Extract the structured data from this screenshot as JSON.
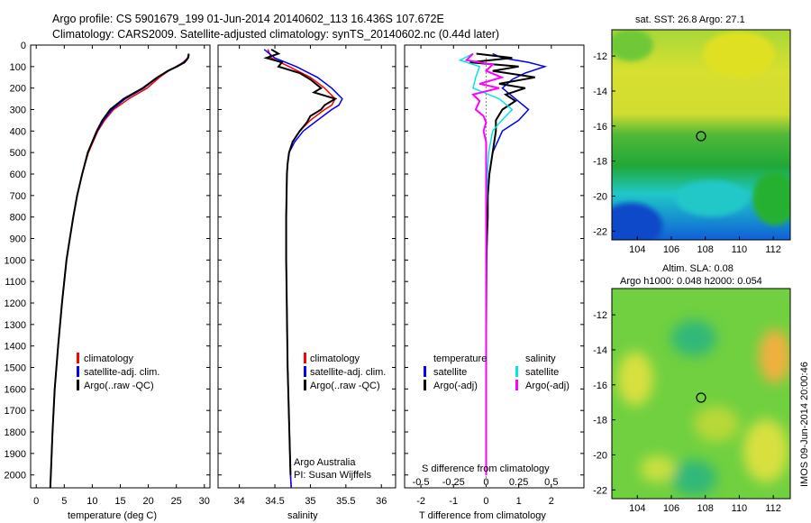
{
  "header": {
    "line1": "Argo profile: CS 5901679_199 01-Jun-2014 20140602_113 16.436S 107.672E",
    "line2": "Climatology: CARS2009. Satellite-adjusted climatology: synTS_20140602.nc (0.44d later)"
  },
  "colors": {
    "climatology": "#ff0000",
    "satellite": "#0000ff",
    "argo": "#000000",
    "sal_satellite": "#00e5e5",
    "sal_argo": "#ff00ff"
  },
  "depth_axis": {
    "ticks": [
      0,
      100,
      200,
      300,
      400,
      500,
      600,
      700,
      800,
      900,
      1000,
      1100,
      1200,
      1300,
      1400,
      1500,
      1600,
      1700,
      1800,
      1900,
      2000
    ],
    "labels": [
      "0",
      "100",
      "200",
      "300",
      "400",
      "500",
      "600",
      "700",
      "800",
      "900",
      "1000",
      "1100",
      "1200",
      "1300",
      "1400",
      "1500",
      "1600",
      "1700",
      "1800",
      "1900",
      "2000"
    ]
  },
  "legend_profile": [
    "climatology",
    "satellite-adj. clim.",
    "Argo(..raw -QC)"
  ],
  "legend_diff": {
    "temperature_head": "temperature",
    "salinity_head": "salinity",
    "t_sat": "satellite",
    "t_argo": "Argo(-adj)",
    "s_sat": "satellite",
    "s_argo": "Argo(-adj)"
  },
  "credits": {
    "line1": "Argo Australia",
    "line2": "PI: Susan Wijffels"
  },
  "timestamp": "IMOS 09-Jun-2014 20:00:46",
  "chart_data": [
    {
      "type": "line",
      "name": "temperature",
      "xlabel": "temperature (deg C)",
      "ylabel": "depth",
      "xlim": [
        -1,
        31
      ],
      "ylim": [
        2060,
        0
      ],
      "xticks": [
        0,
        5,
        10,
        15,
        20,
        25,
        30
      ],
      "series": [
        {
          "name": "climatology",
          "depth": [
            45,
            60,
            80,
            100,
            120,
            150,
            200,
            250,
            300,
            350,
            400,
            500,
            600,
            700,
            800,
            900,
            1000,
            1200,
            1400,
            1600,
            1800,
            2000,
            2060
          ],
          "values": [
            27.2,
            27.0,
            26.2,
            25.0,
            23.6,
            22.0,
            19.8,
            16.5,
            13.8,
            12.2,
            11.0,
            9.3,
            8.2,
            7.3,
            6.6,
            6.0,
            5.4,
            4.6,
            3.9,
            3.3,
            2.9,
            2.6,
            2.5
          ]
        },
        {
          "name": "satellite-adj. clim.",
          "depth": [
            45,
            60,
            80,
            100,
            120,
            150,
            200,
            250,
            300,
            350,
            400,
            500,
            600,
            700,
            800,
            900,
            1000,
            1200,
            1400,
            1600,
            1800,
            2000,
            2060
          ],
          "values": [
            27.3,
            27.1,
            26.3,
            25.0,
            23.4,
            21.7,
            19.2,
            15.9,
            13.5,
            12.0,
            10.9,
            9.2,
            8.2,
            7.3,
            6.6,
            6.0,
            5.4,
            4.6,
            3.9,
            3.3,
            2.9,
            2.6,
            2.5
          ]
        },
        {
          "name": "Argo(..raw -QC)",
          "depth": [
            40,
            60,
            80,
            100,
            120,
            150,
            200,
            250,
            300,
            350,
            400,
            500,
            600,
            700,
            800,
            900,
            1000,
            1200,
            1400,
            1600,
            1800,
            2000,
            2060
          ],
          "values": [
            27.2,
            27.1,
            26.5,
            25.1,
            23.5,
            21.6,
            19.0,
            15.6,
            13.2,
            11.8,
            10.8,
            9.2,
            8.2,
            7.3,
            6.6,
            6.0,
            5.4,
            4.6,
            3.9,
            3.3,
            2.9,
            2.6,
            2.5
          ]
        }
      ]
    },
    {
      "type": "line",
      "name": "salinity",
      "xlabel": "salinity",
      "xlim": [
        33.7,
        36.2
      ],
      "ylim": [
        2060,
        0
      ],
      "xticks": [
        34,
        34.5,
        35,
        35.5,
        36
      ],
      "xticklabels": [
        "34",
        "34.5",
        "35",
        "35.5",
        "36"
      ],
      "series": [
        {
          "name": "climatology",
          "depth": [
            20,
            60,
            100,
            150,
            200,
            250,
            280,
            300,
            350,
            400,
            450,
            500,
            550,
            600,
            800,
            1000,
            1500,
            2000,
            2060
          ],
          "values": [
            34.4,
            34.45,
            34.7,
            35.0,
            35.2,
            35.35,
            35.3,
            35.2,
            35.0,
            34.85,
            34.75,
            34.7,
            34.68,
            34.67,
            34.66,
            34.66,
            34.68,
            34.72,
            34.73
          ]
        },
        {
          "name": "satellite-adj. clim.",
          "depth": [
            20,
            60,
            100,
            150,
            200,
            250,
            280,
            300,
            350,
            400,
            450,
            500,
            550,
            600,
            800,
            1000,
            1500,
            2000,
            2060
          ],
          "values": [
            34.35,
            34.5,
            34.8,
            35.1,
            35.3,
            35.45,
            35.4,
            35.3,
            35.1,
            34.9,
            34.78,
            34.7,
            34.68,
            34.67,
            34.66,
            34.66,
            34.68,
            34.72,
            34.73
          ]
        },
        {
          "name": "Argo(..raw -QC)",
          "depth": [
            20,
            40,
            60,
            80,
            100,
            130,
            160,
            200,
            220,
            250,
            280,
            300,
            330,
            360,
            400,
            450,
            500,
            550,
            600,
            800,
            1000,
            1500,
            2000
          ],
          "values": [
            34.45,
            34.55,
            34.38,
            34.6,
            34.55,
            34.85,
            35.0,
            35.15,
            35.05,
            35.35,
            35.2,
            35.15,
            35.0,
            34.95,
            34.85,
            34.75,
            34.7,
            34.68,
            34.67,
            34.66,
            34.66,
            34.68,
            34.72
          ]
        }
      ]
    },
    {
      "type": "line",
      "name": "differences",
      "xlabel": "T difference from climatology",
      "x2label": "S difference from climatology",
      "xlim": [
        -2.5,
        3.0
      ],
      "x2lim": [
        -0.625,
        0.75
      ],
      "ylim": [
        2060,
        0
      ],
      "xticks": [
        -2,
        -1,
        0,
        1,
        2
      ],
      "x2ticks": [
        -0.5,
        -0.25,
        0,
        0.25,
        0.5
      ],
      "x2ticklabels": [
        "-0.5",
        "-0.25",
        "0",
        "0.25",
        "0.5"
      ],
      "series": [
        {
          "name": "T satellite",
          "axis": "T",
          "depth": [
            40,
            60,
            80,
            100,
            130,
            160,
            200,
            250,
            300,
            350,
            400,
            500,
            600,
            700,
            1000,
            1500,
            2000
          ],
          "values": [
            0.2,
            0.5,
            1.3,
            1.8,
            1.2,
            0.8,
            0.5,
            0.9,
            1.3,
            1.0,
            0.5,
            0.2,
            0.1,
            0.05,
            0.02,
            0.0,
            0.0
          ]
        },
        {
          "name": "T Argo(-adj)",
          "axis": "T",
          "depth": [
            40,
            60,
            80,
            100,
            120,
            150,
            180,
            200,
            230,
            260,
            300,
            350,
            400,
            500,
            600,
            700,
            800,
            1000,
            1500,
            2000
          ],
          "values": [
            -0.3,
            0.8,
            -0.5,
            1.0,
            0.2,
            1.5,
            0.4,
            1.2,
            0.6,
            0.9,
            0.5,
            0.3,
            0.3,
            0.2,
            0.1,
            0.05,
            0.05,
            0.0,
            0.0,
            0.0
          ]
        },
        {
          "name": "S satellite",
          "axis": "S",
          "depth": [
            40,
            70,
            100,
            150,
            200,
            250,
            300,
            350,
            400,
            500,
            600,
            800,
            1000,
            1500,
            2000
          ],
          "values": [
            -0.1,
            -0.2,
            -0.05,
            -0.08,
            -0.1,
            0.1,
            0.2,
            0.12,
            0.05,
            0.02,
            0.01,
            0.0,
            0.0,
            0.0,
            0.0
          ]
        },
        {
          "name": "S Argo(-adj)",
          "axis": "S",
          "depth": [
            40,
            70,
            90,
            120,
            150,
            180,
            200,
            230,
            260,
            300,
            330,
            360,
            400,
            450,
            500,
            600,
            800,
            1000,
            1500,
            2000
          ],
          "values": [
            -0.1,
            -0.15,
            0.05,
            0.0,
            0.12,
            -0.05,
            0.1,
            -0.1,
            -0.05,
            -0.08,
            -0.02,
            0.0,
            -0.02,
            0.0,
            0.0,
            0.0,
            0.0,
            0.0,
            0.0,
            0.0
          ]
        }
      ]
    },
    {
      "type": "heatmap",
      "name": "sst_map",
      "title": "sat. SST: 26.8 Argo: 27.1",
      "xlim": [
        102.5,
        113
      ],
      "ylim": [
        -22.5,
        -10.5
      ],
      "xticks": [
        104,
        106,
        108,
        110,
        112
      ],
      "yticks": [
        -12,
        -14,
        -16,
        -18,
        -20,
        -22
      ],
      "marker": {
        "lon": 107.672,
        "lat": -16.436
      }
    },
    {
      "type": "heatmap",
      "name": "sla_map",
      "title": "Altim. SLA: 0.08",
      "subtitle": "Argo h1000: 0.048 h2000: 0.054",
      "xlim": [
        102.5,
        113
      ],
      "ylim": [
        -22.5,
        -10.5
      ],
      "xticks": [
        104,
        106,
        108,
        110,
        112
      ],
      "yticks": [
        -12,
        -14,
        -16,
        -18,
        -20,
        -22
      ],
      "marker": {
        "lon": 107.672,
        "lat": -16.436
      }
    }
  ]
}
